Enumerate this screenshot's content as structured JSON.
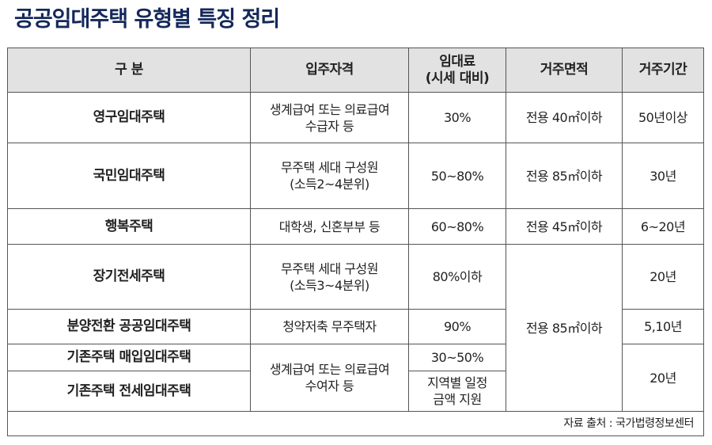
{
  "title": "공공임대주택 유형별 특징 정리",
  "headers": {
    "category": "구 분",
    "eligibility": "입주자격",
    "rent_line1": "임대료",
    "rent_line2": "(시세 대비)",
    "area": "거주면적",
    "period": "거주기간"
  },
  "rows": [
    {
      "category": "영구임대주택",
      "eligibility_line1": "생계급여 또는 의료급여",
      "eligibility_line2": "수급자 등",
      "rent": "30%",
      "area": "전용 40㎡이하",
      "period": "50년이상"
    },
    {
      "category": "국민임대주택",
      "eligibility_line1": "무주택 세대 구성원",
      "eligibility_line2": "(소득2~4분위)",
      "rent": "50~80%",
      "area": "전용 85㎡이하",
      "period": "30년"
    },
    {
      "category": "행복주택",
      "eligibility_line1": "대학생, 신혼부부 등",
      "rent": "60~80%",
      "area": "전용 45㎡이하",
      "period": "6~20년"
    },
    {
      "category": "장기전세주택",
      "eligibility_line1": "무주택 세대 구성원",
      "eligibility_line2": "(소득3~4분위)",
      "rent": "80%이하",
      "area": "전용 85㎡이하",
      "period": "20년"
    },
    {
      "category": "분양전환 공공임대주택",
      "eligibility_line1": "청약저축 무주택자",
      "rent": "90%",
      "period": "5,10년"
    },
    {
      "category": "기존주택 매입임대주택",
      "eligibility_line1": "생계급여 또는 의료급여",
      "eligibility_line2": "수여자 등",
      "rent": "30~50%",
      "period": "20년"
    },
    {
      "category": "기존주택 전세임대주택",
      "rent_line1": "지역별 일정",
      "rent_line2": "금액 지원"
    }
  ],
  "source": "자료 출처 : 국가법령정보센터"
}
